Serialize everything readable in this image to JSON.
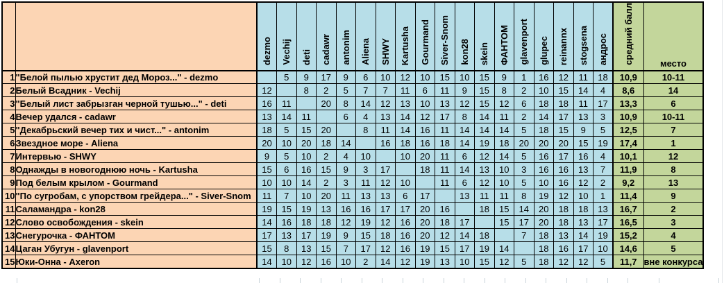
{
  "colors": {
    "voter_header_bg": "#B7DEE8",
    "title_bg": "#FCD5B4",
    "result_bg": "#C3D69B",
    "flag_triangle": "#1F7246",
    "border": "#000000",
    "gridline": "#C9D3D9"
  },
  "header": {
    "voters": [
      "dezmo",
      "Vechij",
      "deti",
      "cadawr",
      "antonim",
      "Aliena",
      "SHWY",
      "Kartusha",
      "Gourmand",
      "Siver-Snom",
      "kon28",
      "skein",
      "ФАНТОМ",
      "glavenport",
      "glupec",
      "reinannx",
      "stogsena",
      "андрос"
    ],
    "avg_label": "средний балл",
    "place_label": "место"
  },
  "rows": [
    {
      "num": "1",
      "title": "\"Белой пылью хрустит дед Мороз...\" - dezmo",
      "scores": [
        "",
        "5",
        "9",
        "17",
        "9",
        "6",
        "10",
        "12",
        "10",
        "15",
        "10",
        "15",
        "9",
        "1",
        "16",
        "12",
        "11",
        "18"
      ],
      "avg": "10,9",
      "place": "10-11",
      "flagged": false
    },
    {
      "num": "2",
      "title": "Белый Всадник - Vechij",
      "scores": [
        "12",
        "",
        "8",
        "2",
        "5",
        "7",
        "7",
        "11",
        "6",
        "11",
        "9",
        "15",
        "8",
        "2",
        "10",
        "15",
        "14",
        "4"
      ],
      "avg": "8,6",
      "place": "14",
      "flagged": true
    },
    {
      "num": "3",
      "title": "\"Белый лист забрызган черной тушью...\" - deti",
      "scores": [
        "16",
        "11",
        "",
        "20",
        "8",
        "14",
        "12",
        "13",
        "10",
        "13",
        "12",
        "15",
        "12",
        "6",
        "18",
        "18",
        "11",
        "17"
      ],
      "avg": "13,3",
      "place": "6",
      "flagged": true
    },
    {
      "num": "4",
      "title": "Вечер удался - cadawr",
      "scores": [
        "13",
        "14",
        "11",
        "",
        "6",
        "4",
        "13",
        "14",
        "12",
        "17",
        "8",
        "14",
        "11",
        "2",
        "14",
        "17",
        "13",
        "3"
      ],
      "avg": "10,9",
      "place": "10-11",
      "flagged": false
    },
    {
      "num": "5",
      "title": "\"Декабрьский вечер тих и чист...\" - antonim",
      "scores": [
        "18",
        "5",
        "15",
        "20",
        "",
        "8",
        "11",
        "14",
        "16",
        "11",
        "14",
        "14",
        "14",
        "5",
        "18",
        "15",
        "9",
        "5"
      ],
      "avg": "12,5",
      "place": "7",
      "flagged": true
    },
    {
      "num": "6",
      "title": "Звездное море - Aliena",
      "scores": [
        "20",
        "10",
        "20",
        "18",
        "14",
        "",
        "16",
        "18",
        "16",
        "18",
        "14",
        "19",
        "18",
        "20",
        "20",
        "20",
        "15",
        "19"
      ],
      "avg": "17,4",
      "place": "1",
      "flagged": true
    },
    {
      "num": "7",
      "title": "Интервью - SHWY",
      "scores": [
        "9",
        "5",
        "10",
        "2",
        "4",
        "10",
        "",
        "10",
        "20",
        "11",
        "6",
        "12",
        "14",
        "5",
        "16",
        "17",
        "16",
        "4"
      ],
      "avg": "10,1",
      "place": "12",
      "flagged": true
    },
    {
      "num": "8",
      "title": "Однажды в новогоднюю ночь - Kartusha",
      "scores": [
        "15",
        "6",
        "16",
        "15",
        "9",
        "3",
        "17",
        "",
        "18",
        "11",
        "14",
        "13",
        "10",
        "3",
        "16",
        "16",
        "13",
        "7"
      ],
      "avg": "11,9",
      "place": "8",
      "flagged": true
    },
    {
      "num": "9",
      "title": "Под белым крылом - Gourmand",
      "scores": [
        "10",
        "10",
        "14",
        "2",
        "3",
        "11",
        "12",
        "10",
        "",
        "11",
        "6",
        "12",
        "10",
        "5",
        "10",
        "16",
        "12",
        "2"
      ],
      "avg": "9,2",
      "place": "13",
      "flagged": true
    },
    {
      "num": "10",
      "title": "\"По сугробам, с упорством грейдера...\" - Siver-Snom",
      "scores": [
        "11",
        "7",
        "10",
        "20",
        "11",
        "13",
        "13",
        "6",
        "17",
        "",
        "13",
        "11",
        "11",
        "8",
        "19",
        "12",
        "10",
        "1"
      ],
      "avg": "11,4",
      "place": "9",
      "flagged": true
    },
    {
      "num": "11",
      "title": "Саламандра - kon28",
      "scores": [
        "19",
        "15",
        "19",
        "13",
        "16",
        "16",
        "17",
        "17",
        "20",
        "16",
        "",
        "18",
        "15",
        "14",
        "20",
        "18",
        "18",
        "13"
      ],
      "avg": "16,7",
      "place": "2",
      "flagged": true
    },
    {
      "num": "12",
      "title": "Слово освобождения - skein",
      "scores": [
        "14",
        "16",
        "18",
        "18",
        "12",
        "19",
        "12",
        "16",
        "20",
        "18",
        "17",
        "",
        "15",
        "17",
        "20",
        "18",
        "13",
        "17"
      ],
      "avg": "16,5",
      "place": "3",
      "flagged": true
    },
    {
      "num": "13",
      "title": "Снегурочка - ФАНТОМ",
      "scores": [
        "17",
        "13",
        "17",
        "19",
        "9",
        "15",
        "18",
        "16",
        "20",
        "12",
        "14",
        "18",
        "",
        "7",
        "18",
        "13",
        "14",
        "19"
      ],
      "avg": "15,2",
      "place": "4",
      "flagged": true
    },
    {
      "num": "14",
      "title": "Цаган Убугун - glavenport",
      "scores": [
        "15",
        "8",
        "13",
        "15",
        "7",
        "17",
        "12",
        "16",
        "19",
        "15",
        "17",
        "19",
        "14",
        "",
        "18",
        "16",
        "17",
        "10"
      ],
      "avg": "14,6",
      "place": "5",
      "flagged": true
    },
    {
      "num": "15",
      "title": "Юки-Онна - Axeron",
      "scores": [
        "14",
        "10",
        "12",
        "16",
        "10",
        "2",
        "14",
        "12",
        "19",
        "13",
        "10",
        "15",
        "12",
        "5",
        "18",
        "12",
        "12",
        "5"
      ],
      "avg": "11,7",
      "place": "вне конкурса",
      "flagged": false
    }
  ]
}
